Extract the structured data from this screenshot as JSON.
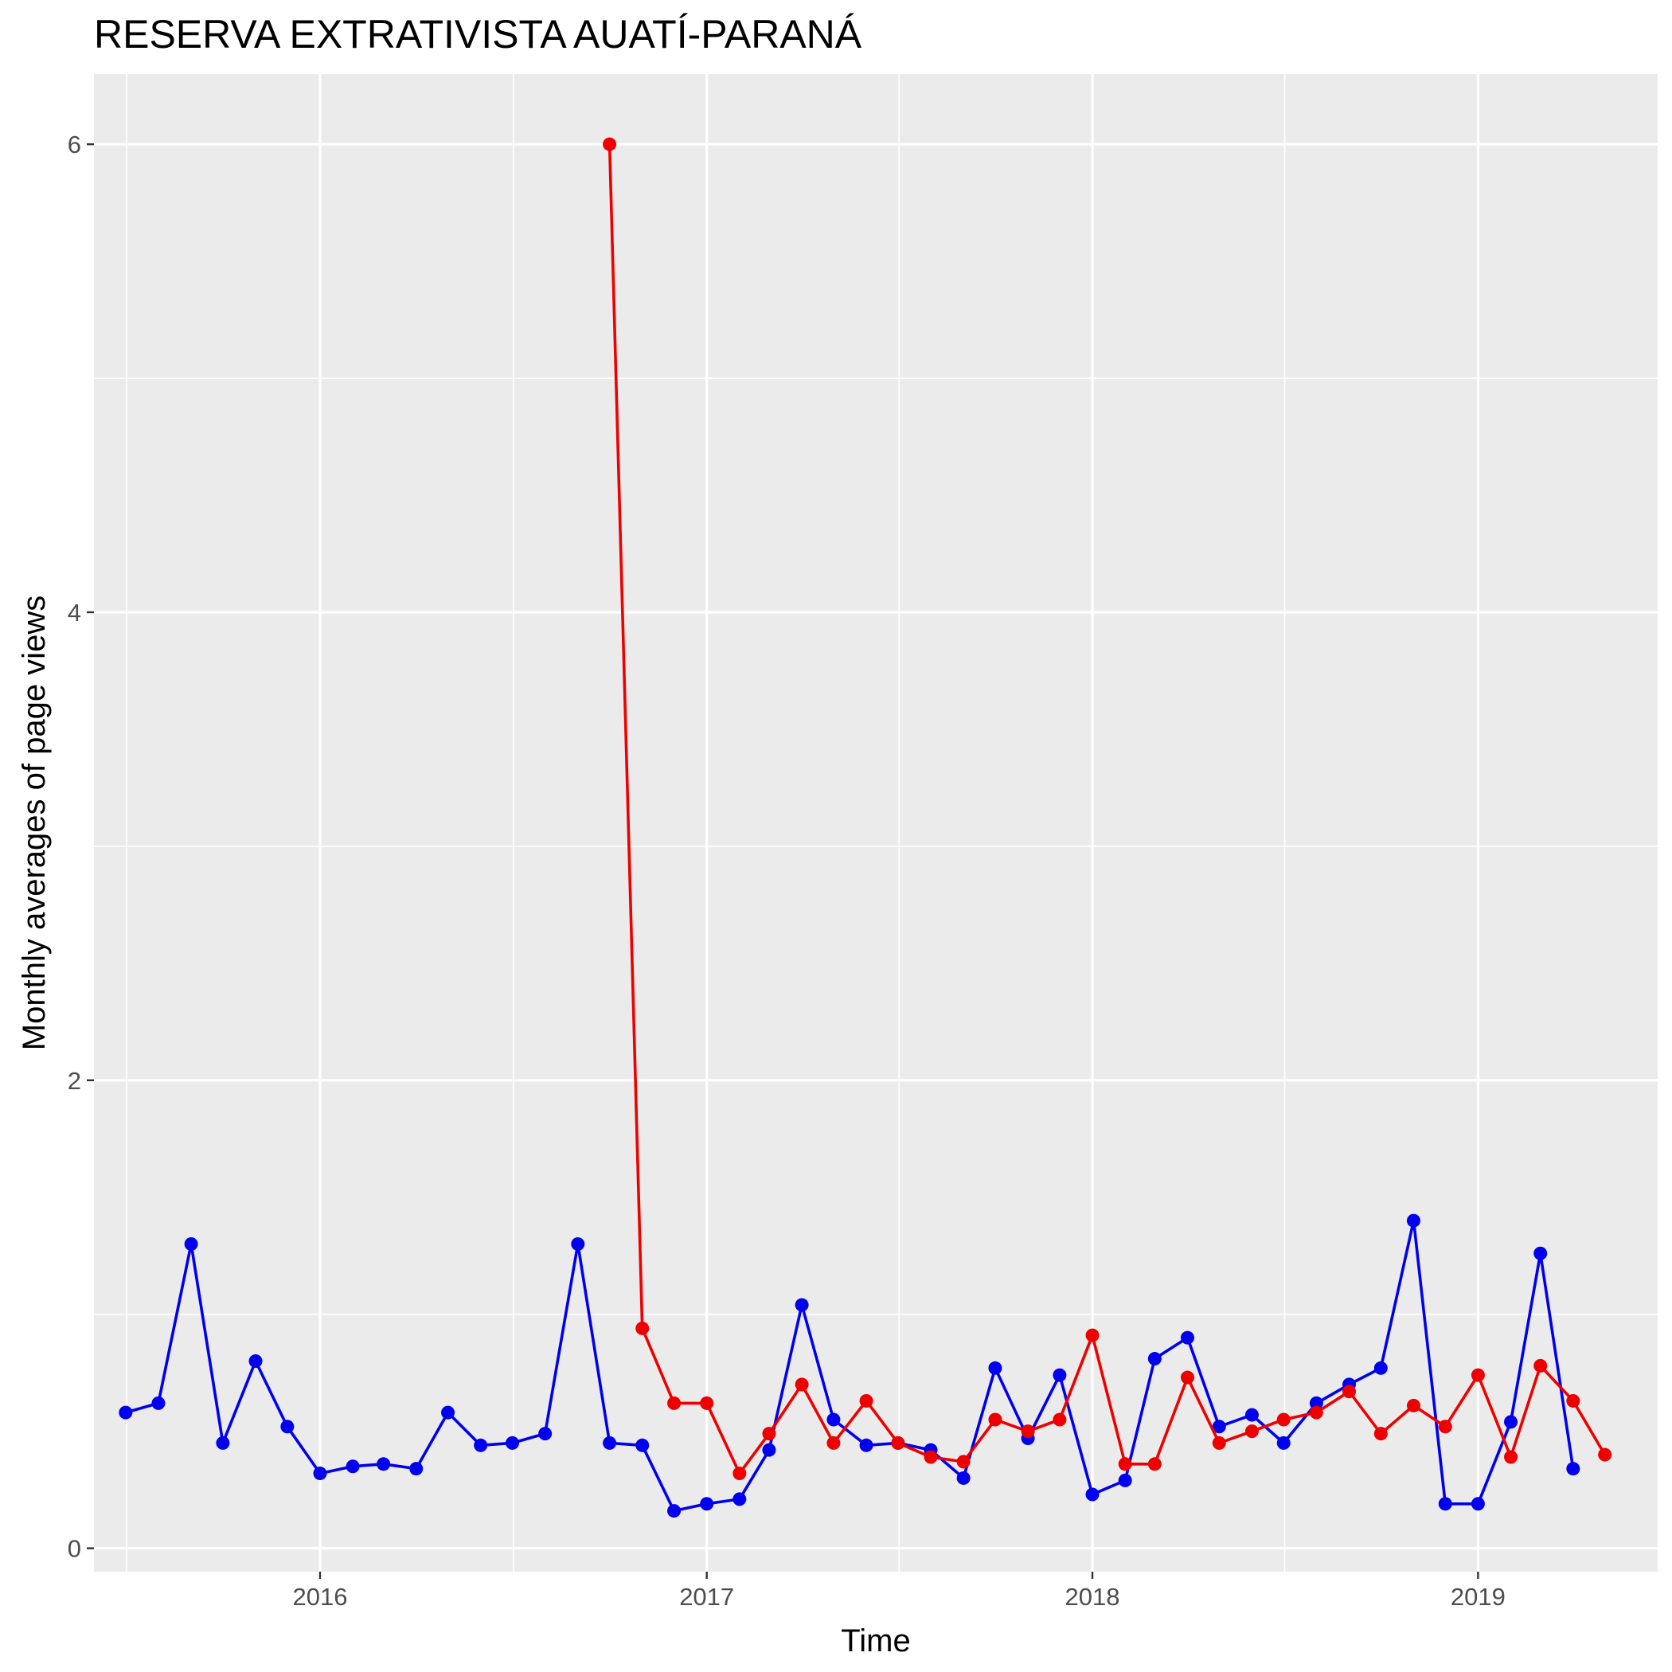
{
  "chart_data": {
    "type": "line",
    "title": "RESERVA EXTRATIVISTA AUATÍ-PARANÁ",
    "xlabel": "Time",
    "ylabel": "Monthly averages of page views",
    "xlim": [
      "2015-06-01",
      "2019-06-20"
    ],
    "ylim": [
      -0.1,
      6.3
    ],
    "x_ticks": [
      {
        "date": "2016-01-01",
        "label": "2016"
      },
      {
        "date": "2017-01-01",
        "label": "2017"
      },
      {
        "date": "2018-01-01",
        "label": "2018"
      },
      {
        "date": "2019-01-01",
        "label": "2019"
      }
    ],
    "y_ticks": [
      {
        "value": 0,
        "label": "0"
      },
      {
        "value": 2,
        "label": "2"
      },
      {
        "value": 4,
        "label": "4"
      },
      {
        "value": 6,
        "label": "6"
      }
    ],
    "grid": true,
    "legend": "none",
    "series": [
      {
        "color": "#0000ee",
        "points": [
          [
            "2015-07-01",
            0.58
          ],
          [
            "2015-08-01",
            0.62
          ],
          [
            "2015-09-01",
            1.3
          ],
          [
            "2015-10-01",
            0.45
          ],
          [
            "2015-11-01",
            0.8
          ],
          [
            "2015-12-01",
            0.52
          ],
          [
            "2016-01-01",
            0.32
          ],
          [
            "2016-02-01",
            0.35
          ],
          [
            "2016-03-01",
            0.36
          ],
          [
            "2016-04-01",
            0.34
          ],
          [
            "2016-05-01",
            0.58
          ],
          [
            "2016-06-01",
            0.44
          ],
          [
            "2016-07-01",
            0.45
          ],
          [
            "2016-08-01",
            0.49
          ],
          [
            "2016-09-01",
            1.3
          ],
          [
            "2016-10-01",
            0.45
          ],
          [
            "2016-11-01",
            0.44
          ],
          [
            "2016-12-01",
            0.16
          ],
          [
            "2017-01-01",
            0.19
          ],
          [
            "2017-02-01",
            0.21
          ],
          [
            "2017-03-01",
            0.42
          ],
          [
            "2017-04-01",
            1.04
          ],
          [
            "2017-05-01",
            0.55
          ],
          [
            "2017-06-01",
            0.44
          ],
          [
            "2017-07-01",
            0.45
          ],
          [
            "2017-08-01",
            0.42
          ],
          [
            "2017-09-01",
            0.3
          ],
          [
            "2017-10-01",
            0.77
          ],
          [
            "2017-11-01",
            0.47
          ],
          [
            "2017-12-01",
            0.74
          ],
          [
            "2018-01-01",
            0.23
          ],
          [
            "2018-02-01",
            0.29
          ],
          [
            "2018-03-01",
            0.81
          ],
          [
            "2018-04-01",
            0.9
          ],
          [
            "2018-05-01",
            0.52
          ],
          [
            "2018-06-01",
            0.57
          ],
          [
            "2018-07-01",
            0.45
          ],
          [
            "2018-08-01",
            0.62
          ],
          [
            "2018-09-01",
            0.7
          ],
          [
            "2018-10-01",
            0.77
          ],
          [
            "2018-11-01",
            1.4
          ],
          [
            "2018-12-01",
            0.19
          ],
          [
            "2019-01-01",
            0.19
          ],
          [
            "2019-02-01",
            0.54
          ],
          [
            "2019-03-01",
            1.26
          ],
          [
            "2019-04-01",
            0.34
          ]
        ]
      },
      {
        "color": "#ee0000",
        "points": [
          [
            "2016-10-01",
            6.0
          ],
          [
            "2016-11-01",
            0.94
          ],
          [
            "2016-12-01",
            0.62
          ],
          [
            "2017-01-01",
            0.62
          ],
          [
            "2017-02-01",
            0.32
          ],
          [
            "2017-03-01",
            0.49
          ],
          [
            "2017-04-01",
            0.7
          ],
          [
            "2017-05-01",
            0.45
          ],
          [
            "2017-06-01",
            0.63
          ],
          [
            "2017-07-01",
            0.45
          ],
          [
            "2017-08-01",
            0.39
          ],
          [
            "2017-09-01",
            0.37
          ],
          [
            "2017-10-01",
            0.55
          ],
          [
            "2017-11-01",
            0.5
          ],
          [
            "2017-12-01",
            0.55
          ],
          [
            "2018-01-01",
            0.91
          ],
          [
            "2018-02-01",
            0.36
          ],
          [
            "2018-03-01",
            0.36
          ],
          [
            "2018-04-01",
            0.73
          ],
          [
            "2018-05-01",
            0.45
          ],
          [
            "2018-06-01",
            0.5
          ],
          [
            "2018-07-01",
            0.55
          ],
          [
            "2018-08-01",
            0.58
          ],
          [
            "2018-09-01",
            0.67
          ],
          [
            "2018-10-01",
            0.49
          ],
          [
            "2018-11-01",
            0.61
          ],
          [
            "2018-12-01",
            0.52
          ],
          [
            "2019-01-01",
            0.74
          ],
          [
            "2019-02-01",
            0.39
          ],
          [
            "2019-03-01",
            0.78
          ],
          [
            "2019-04-01",
            0.63
          ],
          [
            "2019-05-01",
            0.4
          ]
        ]
      }
    ]
  }
}
